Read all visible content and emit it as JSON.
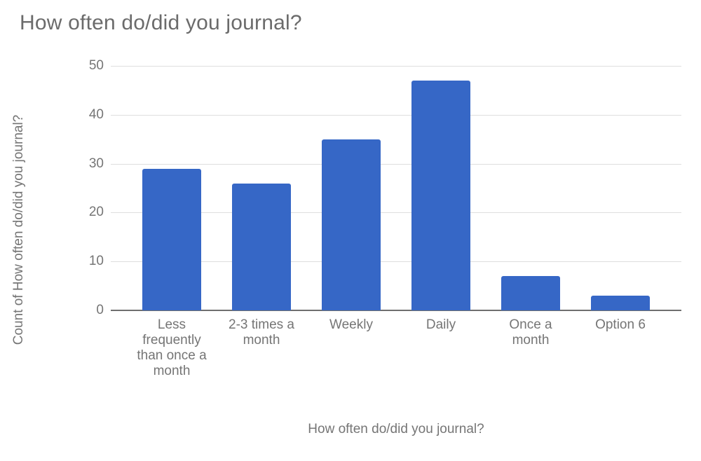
{
  "chart": {
    "title": "How often do/did you journal?",
    "x_axis_title": "How often do/did you journal?",
    "y_axis_title": "Count of How often do/did you journal?"
  },
  "chart_data": {
    "type": "bar",
    "title": "How often do/did you journal?",
    "xlabel": "How often do/did you journal?",
    "ylabel": "Count of How often do/did you journal?",
    "categories": [
      "Less frequently than once a month",
      "2-3 times a month",
      "Weekly",
      "Daily",
      "Once a month",
      "Option 6"
    ],
    "values": [
      29,
      26,
      35,
      47,
      7,
      3
    ],
    "ylim": [
      0,
      50
    ],
    "yticks": [
      0,
      10,
      20,
      30,
      40,
      50
    ],
    "grid": true,
    "legend_position": "none",
    "bar_color": "#3667c6",
    "gridline_color": "#dedede",
    "baseline_color": "#6f6f6f",
    "text_color": "#757575",
    "title_color": "#6b6b6b"
  }
}
